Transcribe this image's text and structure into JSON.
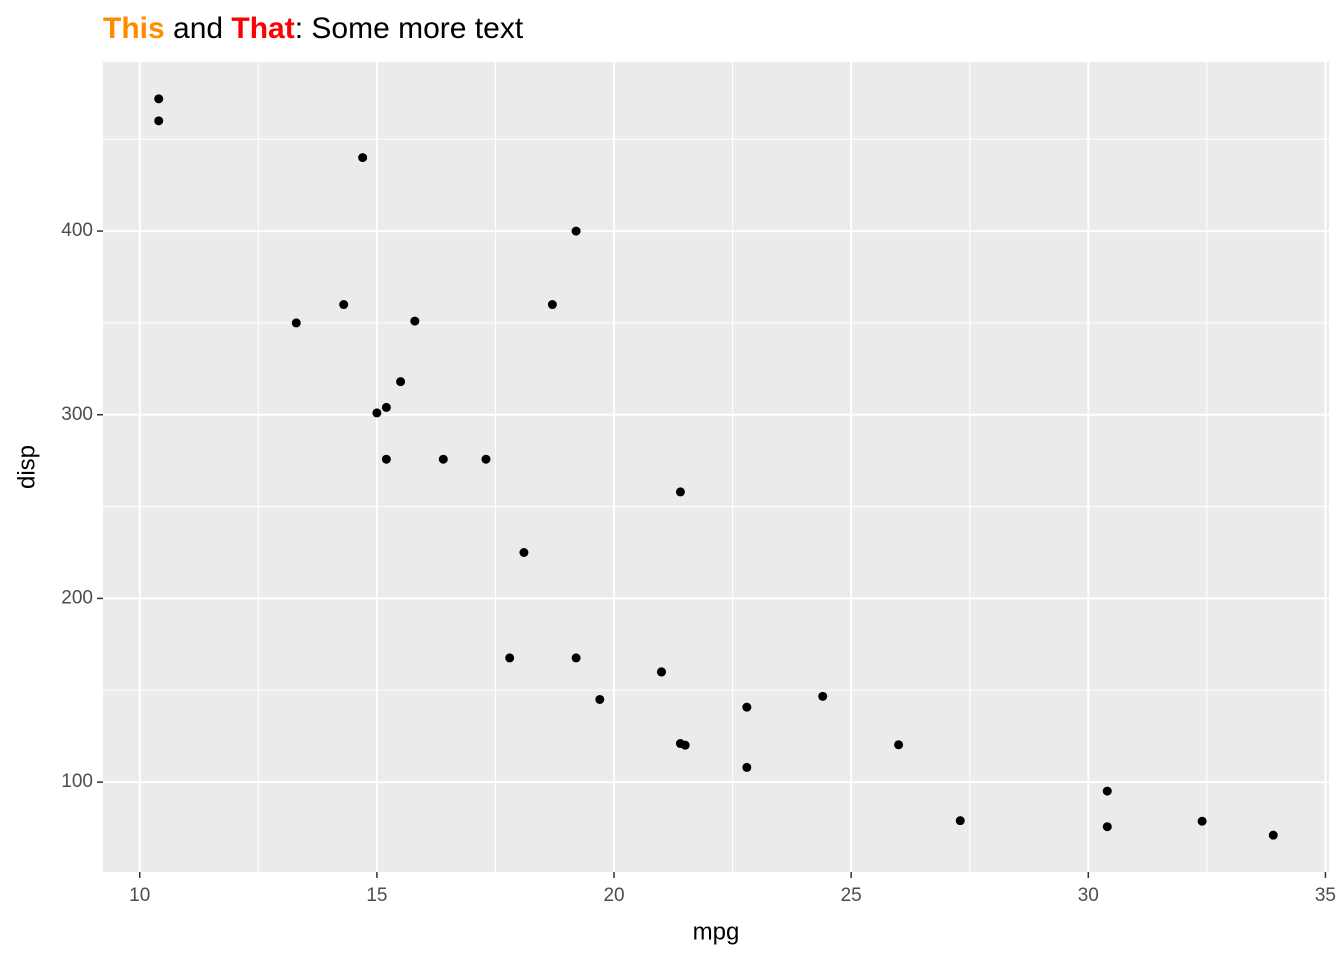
{
  "chart_data": {
    "type": "scatter",
    "title": [
      {
        "text": "This",
        "color": "#FF8C00",
        "bold": true
      },
      {
        "text": " and ",
        "color": "#000000",
        "bold": false
      },
      {
        "text": "That",
        "color": "#FF0000",
        "bold": true
      },
      {
        "text": ": Some more text",
        "color": "#000000",
        "bold": false
      }
    ],
    "x_label": "mpg",
    "y_label": "disp",
    "x": [
      21.0,
      21.0,
      22.8,
      21.4,
      18.7,
      18.1,
      14.3,
      24.4,
      22.8,
      19.2,
      17.8,
      16.4,
      17.3,
      15.2,
      10.4,
      10.4,
      14.7,
      32.4,
      30.4,
      33.9,
      21.5,
      15.5,
      15.2,
      13.3,
      19.2,
      27.3,
      26.0,
      30.4,
      15.8,
      19.7,
      15.0,
      21.4
    ],
    "values": [
      160,
      160,
      108,
      258,
      360,
      225,
      360,
      146.7,
      140.8,
      167.6,
      167.6,
      275.8,
      275.8,
      275.8,
      472,
      460,
      440,
      78.7,
      75.7,
      71.1,
      120.1,
      318,
      304,
      350,
      400,
      79,
      120.3,
      95.1,
      351,
      145,
      301,
      121
    ],
    "color": "#000000",
    "xlim": [
      9.225,
      35.075
    ],
    "xticks": [
      10,
      15,
      20,
      25,
      30,
      35
    ],
    "x_minor_ticks": [
      12.5,
      17.5,
      22.5,
      27.5,
      32.5
    ],
    "ylim": [
      51.055,
      492.045
    ],
    "yticks": [
      100,
      200,
      300,
      400
    ],
    "y_minor_ticks": [
      150,
      250,
      350,
      450
    ],
    "grid": true
  }
}
